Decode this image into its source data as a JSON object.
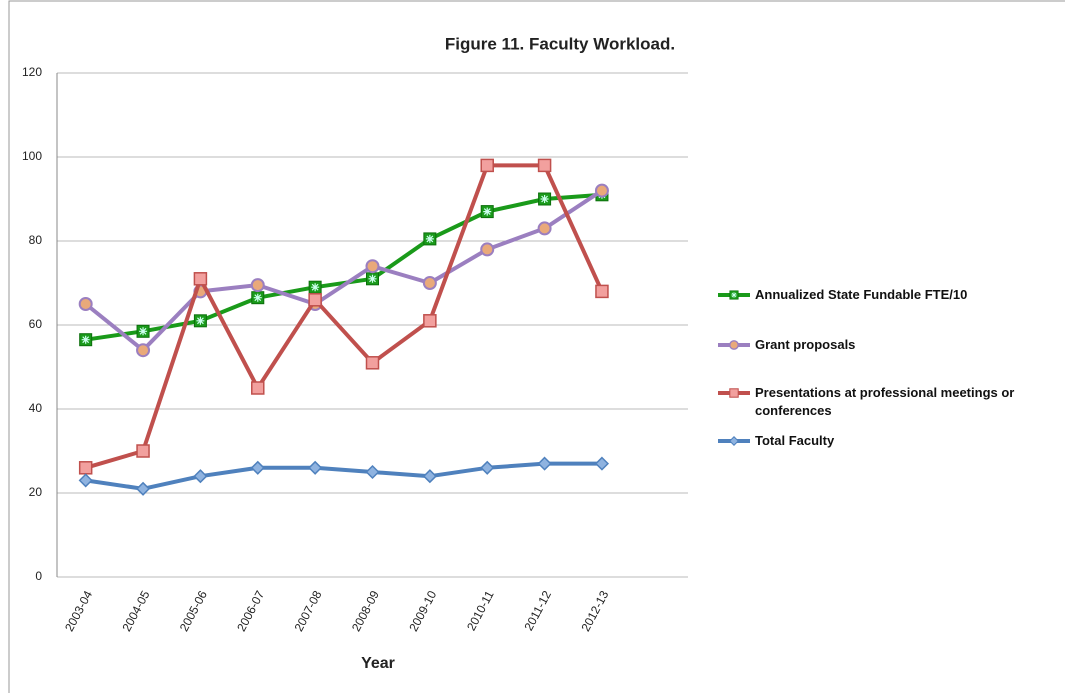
{
  "chart_data": {
    "type": "line",
    "title": "Figure 11. Faculty Workload.",
    "x_label": "Year",
    "categories": [
      "2003-04",
      "2004-05",
      "2005-06",
      "2006-07",
      "2007-08",
      "2008-09",
      "2009-10",
      "2010-11",
      "2011-12",
      "2012-13"
    ],
    "series": [
      {
        "name": "Annualized State Fundable FTE/10",
        "color": "#1a9a1a",
        "marker": "star-square",
        "values": [
          56.5,
          58.5,
          61,
          66.5,
          69,
          71,
          80.5,
          87,
          90,
          91
        ]
      },
      {
        "name": "Grant proposals",
        "color": "#9b7fc0",
        "marker": "circle",
        "values": [
          65,
          54,
          68,
          69.5,
          65,
          74,
          70,
          78,
          83,
          92
        ]
      },
      {
        "name": "Presentations at professional meetings or conferences",
        "color": "#c0504d",
        "marker": "square",
        "values": [
          26,
          30,
          71,
          45,
          66,
          51,
          61,
          98,
          98,
          68
        ]
      },
      {
        "name": "Total Faculty",
        "color": "#4f81bd",
        "marker": "diamond",
        "values": [
          23,
          21,
          24,
          26,
          26,
          25,
          24,
          26,
          27,
          27
        ]
      }
    ],
    "ylim": [
      0,
      120
    ],
    "yticks": [
      0,
      20,
      40,
      60,
      80,
      100,
      120
    ],
    "grid": true,
    "legend": "right"
  }
}
